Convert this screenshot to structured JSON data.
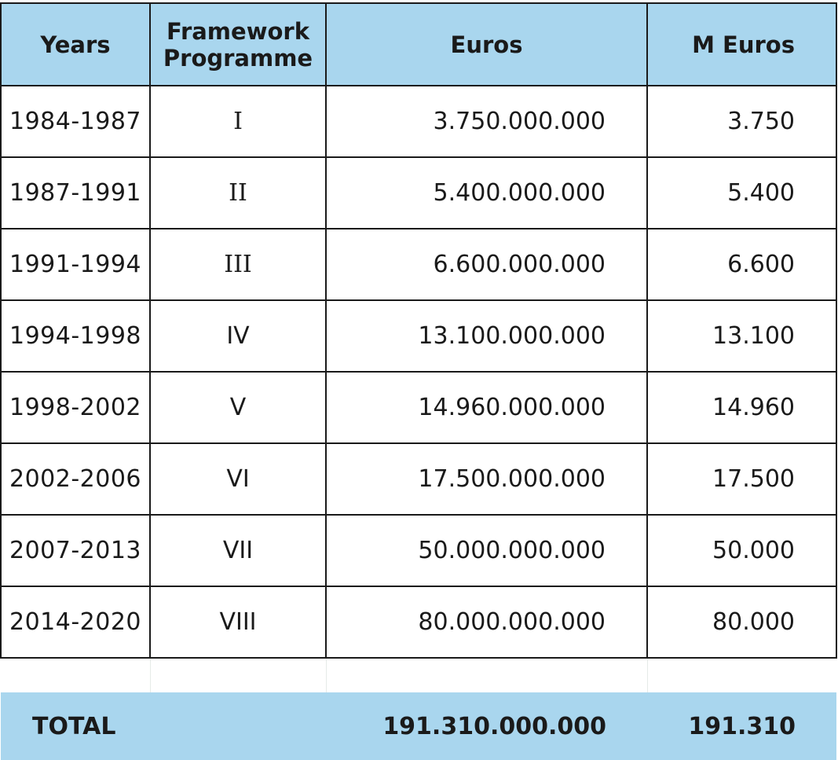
{
  "table": {
    "headers": {
      "years": "Years",
      "framework_line1": "Framework",
      "framework_line2": "Programme",
      "euros": "Euros",
      "m_euros": "M Euros"
    },
    "rows": [
      {
        "years": "1984-1987",
        "programme": "I",
        "euros": "3.750.000.000",
        "m_euros": "3.750"
      },
      {
        "years": "1987-1991",
        "programme": "II",
        "euros": "5.400.000.000",
        "m_euros": "5.400"
      },
      {
        "years": "1991-1994",
        "programme": "III",
        "euros": "6.600.000.000",
        "m_euros": "6.600"
      },
      {
        "years": "1994-1998",
        "programme": "IV",
        "euros": "13.100.000.000",
        "m_euros": "13.100"
      },
      {
        "years": "1998-2002",
        "programme": "V",
        "euros": "14.960.000.000",
        "m_euros": "14.960"
      },
      {
        "years": "2002-2006",
        "programme": "VI",
        "euros": "17.500.000.000",
        "m_euros": "17.500"
      },
      {
        "years": "2007-2013",
        "programme": "VII",
        "euros": "50.000.000.000",
        "m_euros": "50.000"
      },
      {
        "years": "2014-2020",
        "programme": "VIII",
        "euros": "80.000.000.000",
        "m_euros": "80.000"
      }
    ],
    "total": {
      "label": "TOTAL",
      "euros": "191.310.000.000",
      "m_euros": "191.310"
    }
  },
  "colors": {
    "header_bg": "#a9d6ee",
    "total_bg": "#a9d6ee",
    "border": "#1a1a1a"
  }
}
